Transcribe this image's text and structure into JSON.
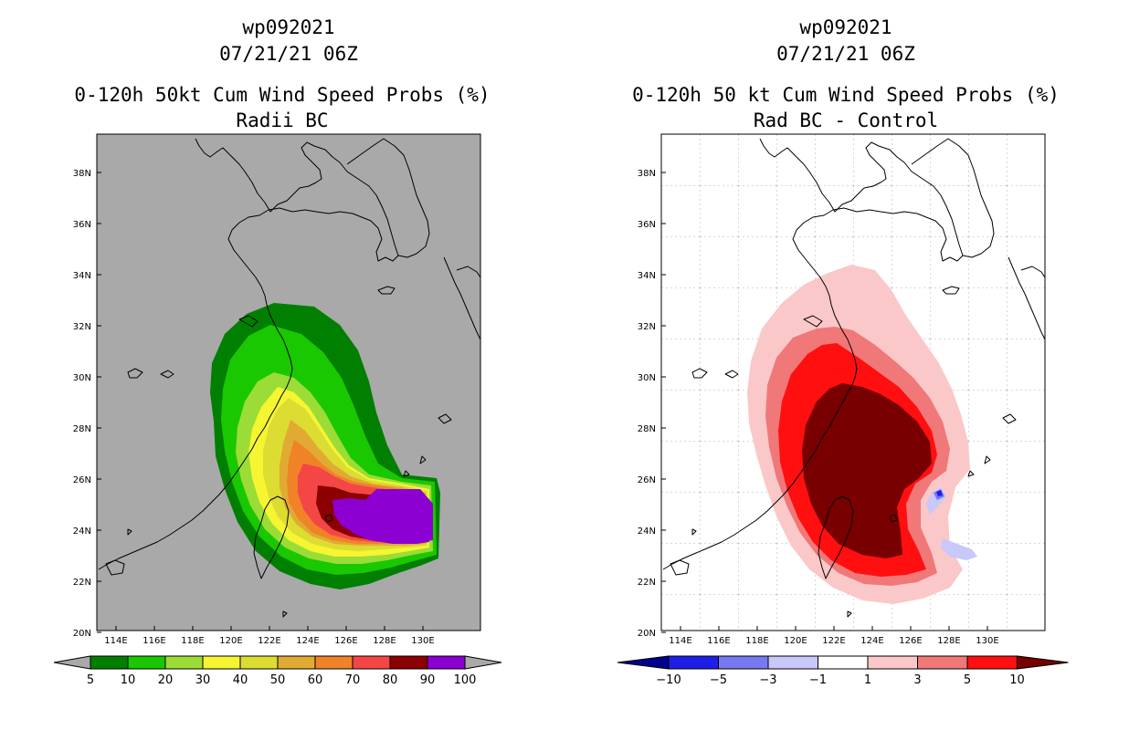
{
  "left_panel": {
    "title_lines": [
      "wp092021",
      "07/21/21 06Z",
      "0-120h 50kt Cum Wind Speed Probs (%)",
      "Radii BC"
    ],
    "x_ticks": [
      "114E",
      "116E",
      "118E",
      "120E",
      "122E",
      "124E",
      "126E",
      "128E",
      "130E"
    ],
    "y_ticks": [
      "38N",
      "36N",
      "34N",
      "32N",
      "30N",
      "28N",
      "26N",
      "24N",
      "22N",
      "20N"
    ],
    "colorbar_labels": [
      "5",
      "10",
      "20",
      "30",
      "40",
      "50",
      "60",
      "70",
      "80",
      "90",
      "100"
    ],
    "colorbar_colors": [
      "#007f00",
      "#19c800",
      "#9cdc37",
      "#f5f532",
      "#dcdc32",
      "#e1aa32",
      "#f08228",
      "#f54646",
      "#8c0000",
      "#8c00d2"
    ],
    "background_color": "#a9a9a9"
  },
  "right_panel": {
    "title_lines": [
      "wp092021",
      "07/21/21 06Z",
      "0-120h 50 kt Cum Wind Speed Probs (%)",
      "Rad BC - Control"
    ],
    "x_ticks": [
      "114E",
      "116E",
      "118E",
      "120E",
      "122E",
      "124E",
      "126E",
      "128E",
      "130E"
    ],
    "y_ticks": [
      "38N",
      "36N",
      "34N",
      "32N",
      "30N",
      "28N",
      "26N",
      "24N",
      "22N",
      "20N"
    ],
    "colorbar_labels": [
      "−10",
      "−5",
      "−3",
      "−1",
      "1",
      "3",
      "5",
      "10"
    ],
    "colorbar_colors": [
      "#00008c",
      "#1e1ee6",
      "#7878f0",
      "#c8c8fa",
      "#ffffff",
      "#fac8c8",
      "#f07878",
      "#ff0f0f",
      "#780000"
    ]
  }
}
